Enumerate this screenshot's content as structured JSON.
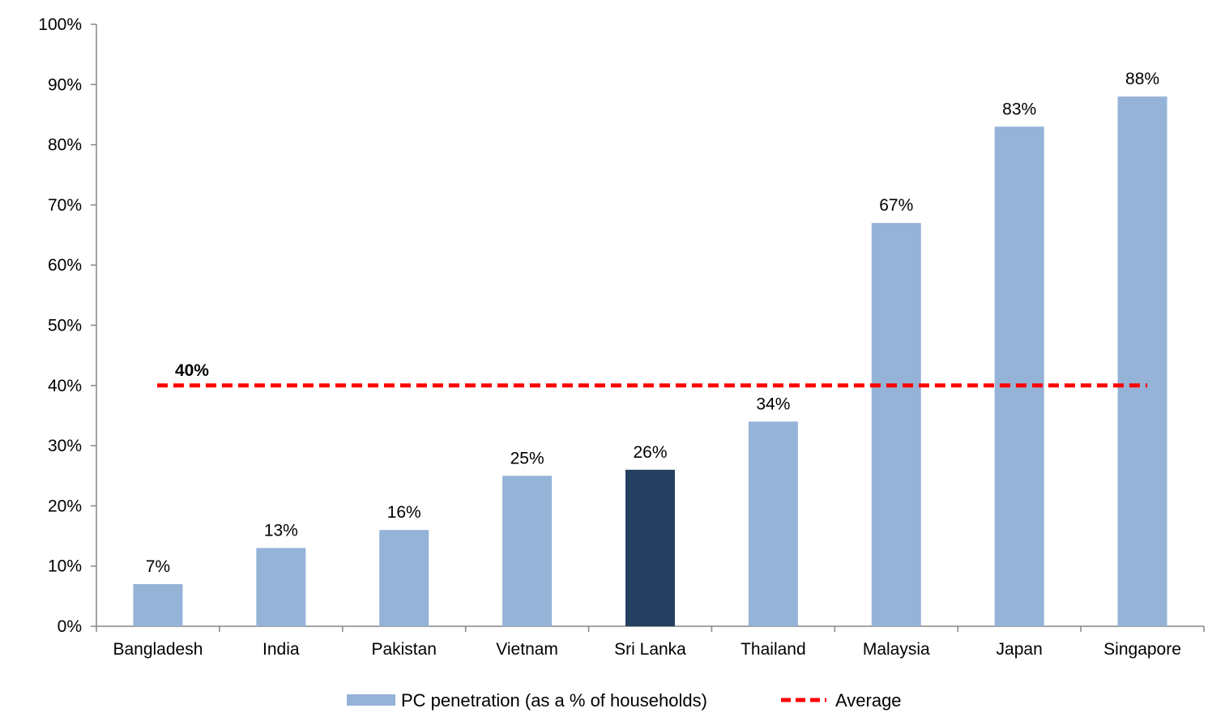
{
  "chart_data": {
    "type": "bar",
    "categories": [
      "Bangladesh",
      "India",
      "Pakistan",
      "Vietnam",
      "Sri Lanka",
      "Thailand",
      "Malaysia",
      "Japan",
      "Singapore"
    ],
    "series": [
      {
        "name": "PC penetration (as a % of households)",
        "values": [
          7,
          13,
          16,
          25,
          26,
          34,
          67,
          83,
          88
        ],
        "data_labels": [
          "7%",
          "13%",
          "16%",
          "25%",
          "26%",
          "34%",
          "67%",
          "83%",
          "88%"
        ],
        "color": "#95b3d7",
        "highlight_category": "Sri Lanka",
        "highlight_color": "#243f60"
      }
    ],
    "reference_line": {
      "name": "Average",
      "value": 40,
      "label": "40%",
      "color": "#ff0000",
      "style": "dashed"
    },
    "ylim": [
      0,
      100
    ],
    "yticks": [
      0,
      10,
      20,
      30,
      40,
      50,
      60,
      70,
      80,
      90,
      100
    ],
    "ytick_labels": [
      "0%",
      "10%",
      "20%",
      "30%",
      "40%",
      "50%",
      "60%",
      "70%",
      "80%",
      "90%",
      "100%"
    ],
    "title": "",
    "xlabel": "",
    "ylabel": "",
    "grid": false,
    "legend_position": "bottom"
  }
}
